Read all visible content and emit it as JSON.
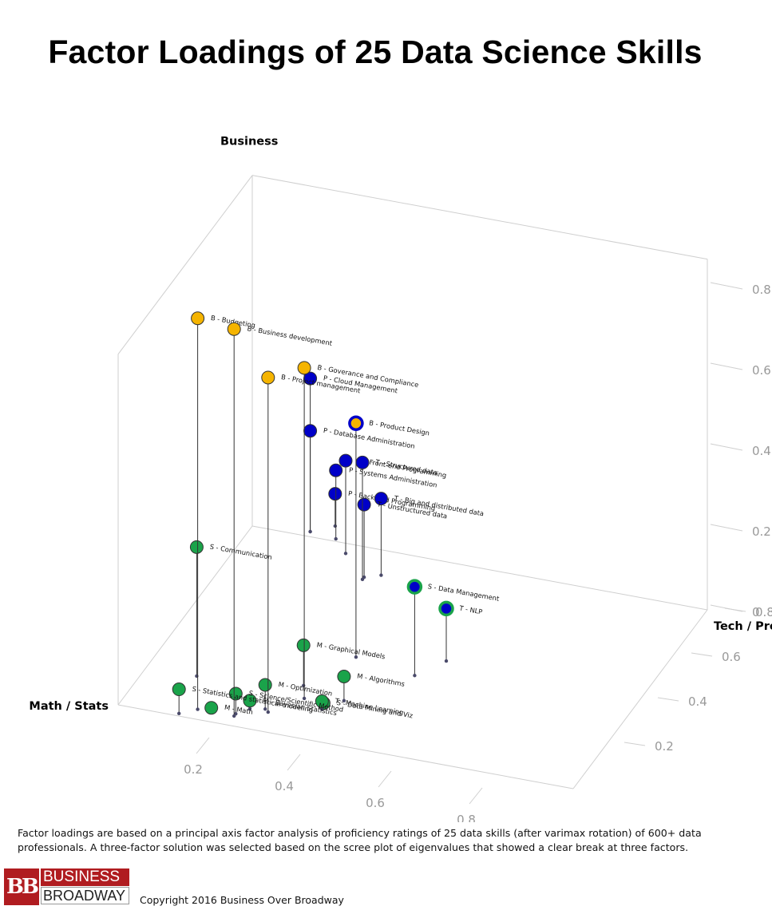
{
  "title": "Factor Loadings of 25 Data Science Skills",
  "caption": "Factor loadings are based on a principal axis factor analysis of proficiency ratings of 25 data skills (after varimax rotation) of 600+ data professionals. A three-factor solution was selected based on the scree plot of eigenvalues that showed a clear break at three factors.",
  "logo": {
    "line1": "BUSINESS",
    "line2": "BROADWAY",
    "mark": "BB"
  },
  "copyright": "Copyright 2016 Business Over Broadway",
  "colors": {
    "business": "#f5b400",
    "math": "#1aa34a",
    "tech": "#0000c8",
    "grid": "#cfcfcf",
    "tick": "#999999",
    "stem": "#333333"
  },
  "chart_data": {
    "type": "scatter3d",
    "axes": {
      "math": {
        "label": "Math / Stats",
        "ticks": [
          "0.2",
          "0.4",
          "0.6",
          "0.8"
        ]
      },
      "tech": {
        "label": "Tech / Program",
        "ticks": [
          "0.2",
          "0.4",
          "0.6",
          "0.8"
        ]
      },
      "business": {
        "label": "Business",
        "ticks": [
          "0",
          "0.2",
          "0.4",
          "0.6",
          "0.8"
        ]
      }
    },
    "points": [
      {
        "label": "B - Budgeting",
        "group": "business",
        "math": 0.16,
        "tech": 0.04,
        "business": 0.97
      },
      {
        "label": "B - Business development",
        "group": "business",
        "math": 0.24,
        "tech": 0.04,
        "business": 0.96
      },
      {
        "label": "B - Project management",
        "group": "business",
        "math": 0.3,
        "tech": 0.08,
        "business": 0.83
      },
      {
        "label": "B - Goverance and Compliance",
        "group": "business",
        "math": 0.35,
        "tech": 0.16,
        "business": 0.82
      },
      {
        "label": "B - Product Design",
        "group": "business",
        "outline": "tech",
        "math": 0.39,
        "tech": 0.36,
        "business": 0.58
      },
      {
        "label": "S - Communication",
        "group": "math",
        "math": 0.11,
        "tech": 0.17,
        "business": 0.32
      },
      {
        "label": "S - Data Management",
        "group": "tech",
        "outline": "math",
        "math": 0.53,
        "tech": 0.33,
        "business": 0.22
      },
      {
        "label": "M - Graphical Models",
        "group": "math",
        "math": 0.33,
        "tech": 0.21,
        "business": 0.1
      },
      {
        "label": "T - NLP",
        "group": "tech",
        "outline": "math",
        "math": 0.57,
        "tech": 0.41,
        "business": 0.13
      },
      {
        "label": "S - Statistics and statistical modeling",
        "group": "math",
        "math": 0.13,
        "tech": 0.01,
        "business": 0.06
      },
      {
        "label": "S - Science/Scientific Method",
        "group": "math",
        "math": 0.24,
        "tech": 0.05,
        "business": 0.05
      },
      {
        "label": "M - Optimization",
        "group": "math",
        "math": 0.29,
        "tech": 0.09,
        "business": 0.06
      },
      {
        "label": "M - Bayesian Statistics",
        "group": "math",
        "math": 0.26,
        "tech": 0.08,
        "business": 0.02
      },
      {
        "label": "M - Math",
        "group": "math",
        "math": 0.19,
        "tech": 0.04,
        "business": 0.01
      },
      {
        "label": "S - Data Mining and Viz",
        "group": "math",
        "math": 0.4,
        "tech": 0.14,
        "business": 0.01
      },
      {
        "label": "M - Algorithms",
        "group": "math",
        "math": 0.43,
        "tech": 0.18,
        "business": 0.06
      },
      {
        "label": "T - Machine Learning",
        "group": "math",
        "math": 0.4,
        "tech": 0.13,
        "business": 0.02
      },
      {
        "label": "P - Cloud Management",
        "group": "tech",
        "math": 0.12,
        "tech": 0.82,
        "business": 0.38
      },
      {
        "label": "P - Database Administration",
        "group": "tech",
        "math": 0.12,
        "tech": 0.82,
        "business": 0.25
      },
      {
        "label": "T - Structured data",
        "group": "tech",
        "math": 0.29,
        "tech": 0.67,
        "business": 0.29
      },
      {
        "label": "P - Front-end Programming",
        "group": "tech",
        "math": 0.22,
        "tech": 0.76,
        "business": 0.23
      },
      {
        "label": "T - Unstructured data",
        "group": "tech",
        "math": 0.29,
        "tech": 0.68,
        "business": 0.18
      },
      {
        "label": "P - Systems Administration",
        "group": "tech",
        "math": 0.18,
        "tech": 0.81,
        "business": 0.17
      },
      {
        "label": "P - Back-end Programming",
        "group": "tech",
        "math": 0.16,
        "tech": 0.86,
        "business": 0.08
      },
      {
        "label": "T - Big and distributed data",
        "group": "tech",
        "math": 0.32,
        "tech": 0.7,
        "business": 0.19
      }
    ]
  }
}
